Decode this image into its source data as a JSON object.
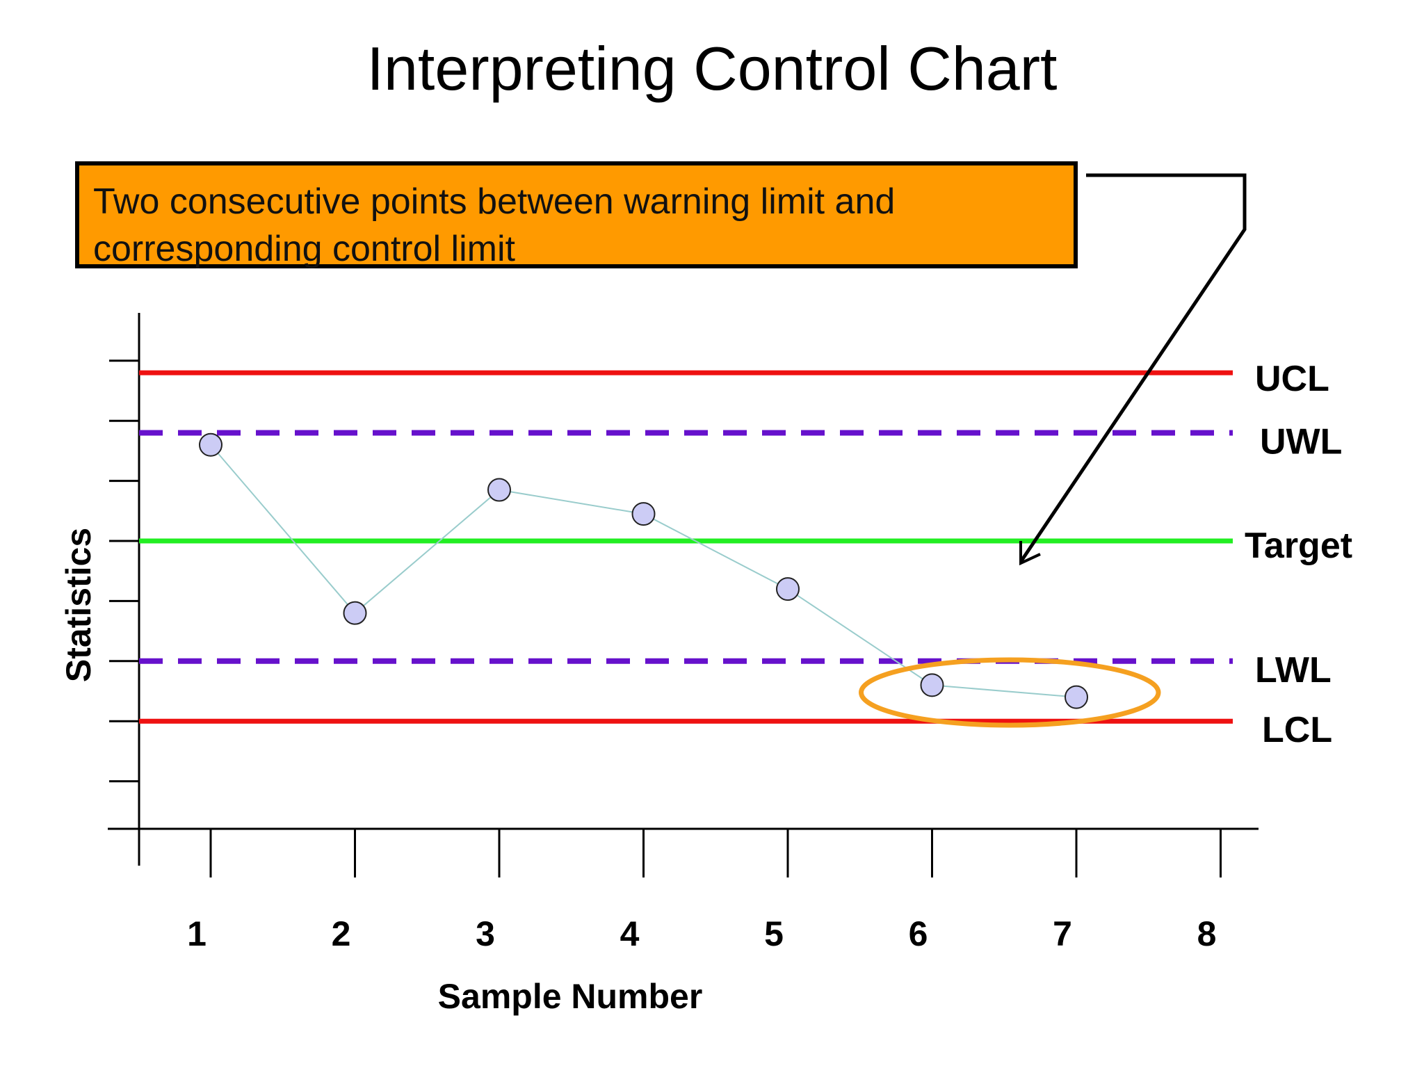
{
  "title": "Interpreting Control Chart",
  "callout": {
    "text": "Two consecutive points between warning limit and corresponding control limit"
  },
  "colors": {
    "control_limit": "#ee1111",
    "warning_limit": "#6611cc",
    "target": "#22ee22",
    "callout_fill": "#ff9a00",
    "point_fill": "#ccccf5",
    "point_line": "#99cccc",
    "highlight": "#f5a020"
  },
  "chart_data": {
    "type": "line",
    "title": "Interpreting Control Chart",
    "xlabel": "Sample Number",
    "ylabel": "Statistics",
    "categories": [
      "1",
      "2",
      "3",
      "4",
      "5",
      "6",
      "7",
      "8"
    ],
    "xlim": [
      0.5,
      8
    ],
    "ylim": [
      0,
      8
    ],
    "y_ticks": [
      0,
      1,
      2,
      3,
      4,
      5,
      6,
      7,
      8
    ],
    "grid": false,
    "series": [
      {
        "x": [
          1,
          2,
          3,
          4,
          5,
          6,
          7
        ],
        "values": [
          6.6,
          3.8,
          5.85,
          5.45,
          4.2,
          2.6,
          2.4
        ]
      }
    ],
    "reference_lines": [
      {
        "label": "UCL",
        "value": 7.8,
        "style": "solid",
        "color": "#ee1111"
      },
      {
        "label": "UWL",
        "value": 6.8,
        "style": "dashed",
        "color": "#6611cc"
      },
      {
        "label": "Target",
        "value": 5.0,
        "style": "solid",
        "color": "#22ee22"
      },
      {
        "label": "LWL",
        "value": 3.0,
        "style": "dashed",
        "color": "#6611cc"
      },
      {
        "label": "LCL",
        "value": 2.0,
        "style": "solid",
        "color": "#ee1111"
      }
    ],
    "highlighted_points": [
      6,
      7
    ]
  }
}
